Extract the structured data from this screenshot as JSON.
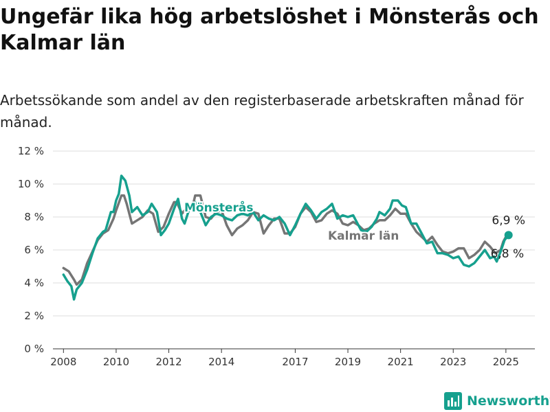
{
  "title": "Ungefär lika hög arbetslöshet i Mönsterås och Kalmar län",
  "subtitle": "Arbetssökande som andel av den registerbaserade arbetskraften månad för månad.",
  "brand": {
    "name": "Newsworthy",
    "icon": "bar-chart-logo-icon",
    "color": "#16a08e"
  },
  "chart_data": {
    "type": "line",
    "title": "",
    "xlabel": "",
    "ylabel": "",
    "xlim": [
      2007.6,
      2025.9
    ],
    "ylim": [
      0,
      12
    ],
    "grid": true,
    "x_ticks": [
      {
        "label": "2008",
        "value": 2008
      },
      {
        "label": "2010",
        "value": 2010
      },
      {
        "label": "2012",
        "value": 2012
      },
      {
        "label": "2014",
        "value": 2014
      },
      {
        "label": "2017",
        "value": 2016.8
      },
      {
        "label": "2019",
        "value": 2018.8
      },
      {
        "label": "2021",
        "value": 2020.8
      },
      {
        "label": "2023",
        "value": 2022.8
      },
      {
        "label": "2025",
        "value": 2024.8
      }
    ],
    "y_ticks": [
      {
        "label": "0 %",
        "value": 0
      },
      {
        "label": "2 %",
        "value": 2
      },
      {
        "label": "4 %",
        "value": 4
      },
      {
        "label": "6 %",
        "value": 6
      },
      {
        "label": "8 %",
        "value": 8
      },
      {
        "label": "10 %",
        "value": 10
      },
      {
        "label": "12 %",
        "value": 12
      }
    ],
    "series": [
      {
        "name": "Kalmar län",
        "color": "#757575",
        "points": [
          [
            2008.0,
            4.9
          ],
          [
            2008.2,
            4.7
          ],
          [
            2008.4,
            4.2
          ],
          [
            2008.5,
            3.9
          ],
          [
            2008.7,
            4.2
          ],
          [
            2008.9,
            5.2
          ],
          [
            2009.1,
            5.9
          ],
          [
            2009.3,
            6.6
          ],
          [
            2009.5,
            7.0
          ],
          [
            2009.7,
            7.2
          ],
          [
            2009.9,
            7.9
          ],
          [
            2010.0,
            8.4
          ],
          [
            2010.2,
            9.3
          ],
          [
            2010.3,
            9.3
          ],
          [
            2010.4,
            8.8
          ],
          [
            2010.6,
            7.6
          ],
          [
            2010.8,
            7.8
          ],
          [
            2011.0,
            8.0
          ],
          [
            2011.2,
            8.4
          ],
          [
            2011.4,
            8.2
          ],
          [
            2011.6,
            7.1
          ],
          [
            2011.8,
            7.4
          ],
          [
            2012.0,
            8.2
          ],
          [
            2012.2,
            8.9
          ],
          [
            2012.3,
            8.9
          ],
          [
            2012.5,
            8.2
          ],
          [
            2012.7,
            8.6
          ],
          [
            2012.9,
            8.6
          ],
          [
            2013.0,
            9.3
          ],
          [
            2013.2,
            9.3
          ],
          [
            2013.4,
            8.0
          ],
          [
            2013.6,
            7.9
          ],
          [
            2013.8,
            8.3
          ],
          [
            2014.0,
            8.4
          ],
          [
            2014.2,
            7.5
          ],
          [
            2014.4,
            6.9
          ],
          [
            2014.6,
            7.3
          ],
          [
            2014.8,
            7.5
          ],
          [
            2015.0,
            7.8
          ],
          [
            2015.2,
            8.3
          ],
          [
            2015.4,
            8.2
          ],
          [
            2015.6,
            7.0
          ],
          [
            2015.8,
            7.5
          ],
          [
            2016.0,
            7.9
          ],
          [
            2016.2,
            7.9
          ],
          [
            2016.4,
            7.0
          ],
          [
            2016.6,
            7.0
          ],
          [
            2016.8,
            7.4
          ],
          [
            2017.0,
            8.2
          ],
          [
            2017.2,
            8.6
          ],
          [
            2017.4,
            8.3
          ],
          [
            2017.6,
            7.7
          ],
          [
            2017.8,
            7.8
          ],
          [
            2018.0,
            8.2
          ],
          [
            2018.2,
            8.4
          ],
          [
            2018.4,
            8.2
          ],
          [
            2018.6,
            7.6
          ],
          [
            2018.8,
            7.5
          ],
          [
            2019.0,
            7.7
          ],
          [
            2019.2,
            7.5
          ],
          [
            2019.4,
            7.2
          ],
          [
            2019.6,
            7.3
          ],
          [
            2019.8,
            7.6
          ],
          [
            2020.0,
            7.8
          ],
          [
            2020.2,
            7.8
          ],
          [
            2020.4,
            8.1
          ],
          [
            2020.6,
            8.5
          ],
          [
            2020.8,
            8.2
          ],
          [
            2021.0,
            8.2
          ],
          [
            2021.2,
            7.6
          ],
          [
            2021.4,
            7.1
          ],
          [
            2021.6,
            6.8
          ],
          [
            2021.8,
            6.5
          ],
          [
            2022.0,
            6.8
          ],
          [
            2022.2,
            6.3
          ],
          [
            2022.4,
            5.9
          ],
          [
            2022.6,
            5.8
          ],
          [
            2022.8,
            5.9
          ],
          [
            2023.0,
            6.1
          ],
          [
            2023.2,
            6.1
          ],
          [
            2023.4,
            5.5
          ],
          [
            2023.6,
            5.7
          ],
          [
            2023.8,
            6.0
          ],
          [
            2024.0,
            6.5
          ],
          [
            2024.2,
            6.2
          ],
          [
            2024.4,
            5.8
          ],
          [
            2024.6,
            6.0
          ],
          [
            2024.7,
            6.5
          ],
          [
            2024.8,
            6.8
          ]
        ],
        "end_label": "6,8 %"
      },
      {
        "name": "Mönsterås",
        "color": "#16a08e",
        "points": [
          [
            2008.0,
            4.5
          ],
          [
            2008.15,
            4.1
          ],
          [
            2008.3,
            3.8
          ],
          [
            2008.4,
            3.0
          ],
          [
            2008.5,
            3.6
          ],
          [
            2008.7,
            4.0
          ],
          [
            2008.9,
            4.8
          ],
          [
            2009.1,
            5.8
          ],
          [
            2009.3,
            6.7
          ],
          [
            2009.5,
            7.1
          ],
          [
            2009.6,
            7.2
          ],
          [
            2009.8,
            8.3
          ],
          [
            2009.9,
            8.3
          ],
          [
            2010.0,
            9.0
          ],
          [
            2010.1,
            9.4
          ],
          [
            2010.2,
            10.5
          ],
          [
            2010.35,
            10.2
          ],
          [
            2010.5,
            9.3
          ],
          [
            2010.6,
            8.3
          ],
          [
            2010.8,
            8.6
          ],
          [
            2011.0,
            8.1
          ],
          [
            2011.2,
            8.3
          ],
          [
            2011.35,
            8.8
          ],
          [
            2011.55,
            8.3
          ],
          [
            2011.7,
            6.9
          ],
          [
            2011.85,
            7.2
          ],
          [
            2012.0,
            7.6
          ],
          [
            2012.2,
            8.5
          ],
          [
            2012.35,
            9.1
          ],
          [
            2012.5,
            7.9
          ],
          [
            2012.6,
            7.6
          ],
          [
            2012.8,
            8.6
          ],
          [
            2013.0,
            8.9
          ],
          [
            2013.2,
            8.3
          ],
          [
            2013.4,
            7.5
          ],
          [
            2013.6,
            8.0
          ],
          [
            2013.8,
            8.2
          ],
          [
            2014.0,
            8.1
          ],
          [
            2014.2,
            7.9
          ],
          [
            2014.4,
            7.8
          ],
          [
            2014.6,
            8.1
          ],
          [
            2014.8,
            8.2
          ],
          [
            2015.0,
            8.1
          ],
          [
            2015.2,
            8.3
          ],
          [
            2015.4,
            7.8
          ],
          [
            2015.6,
            8.1
          ],
          [
            2015.8,
            7.9
          ],
          [
            2016.0,
            7.8
          ],
          [
            2016.2,
            8.0
          ],
          [
            2016.4,
            7.6
          ],
          [
            2016.6,
            6.9
          ],
          [
            2016.8,
            7.5
          ],
          [
            2017.0,
            8.2
          ],
          [
            2017.2,
            8.8
          ],
          [
            2017.4,
            8.4
          ],
          [
            2017.6,
            7.9
          ],
          [
            2017.8,
            8.3
          ],
          [
            2018.0,
            8.5
          ],
          [
            2018.2,
            8.8
          ],
          [
            2018.4,
            7.9
          ],
          [
            2018.6,
            8.1
          ],
          [
            2018.8,
            8.0
          ],
          [
            2019.0,
            8.1
          ],
          [
            2019.1,
            7.8
          ],
          [
            2019.3,
            7.2
          ],
          [
            2019.5,
            7.1
          ],
          [
            2019.7,
            7.4
          ],
          [
            2019.9,
            7.9
          ],
          [
            2020.0,
            8.3
          ],
          [
            2020.2,
            8.1
          ],
          [
            2020.4,
            8.5
          ],
          [
            2020.5,
            9.0
          ],
          [
            2020.7,
            9.0
          ],
          [
            2020.85,
            8.7
          ],
          [
            2021.0,
            8.6
          ],
          [
            2021.2,
            7.6
          ],
          [
            2021.4,
            7.6
          ],
          [
            2021.6,
            7.0
          ],
          [
            2021.8,
            6.4
          ],
          [
            2022.0,
            6.5
          ],
          [
            2022.2,
            5.8
          ],
          [
            2022.4,
            5.8
          ],
          [
            2022.6,
            5.7
          ],
          [
            2022.8,
            5.5
          ],
          [
            2023.0,
            5.6
          ],
          [
            2023.2,
            5.1
          ],
          [
            2023.4,
            5.0
          ],
          [
            2023.6,
            5.2
          ],
          [
            2023.8,
            5.6
          ],
          [
            2024.0,
            6.0
          ],
          [
            2024.2,
            5.5
          ],
          [
            2024.35,
            5.6
          ],
          [
            2024.45,
            5.3
          ],
          [
            2024.6,
            5.9
          ],
          [
            2024.75,
            6.6
          ],
          [
            2024.9,
            6.9
          ]
        ],
        "end_label": "6,9 %"
      }
    ]
  }
}
